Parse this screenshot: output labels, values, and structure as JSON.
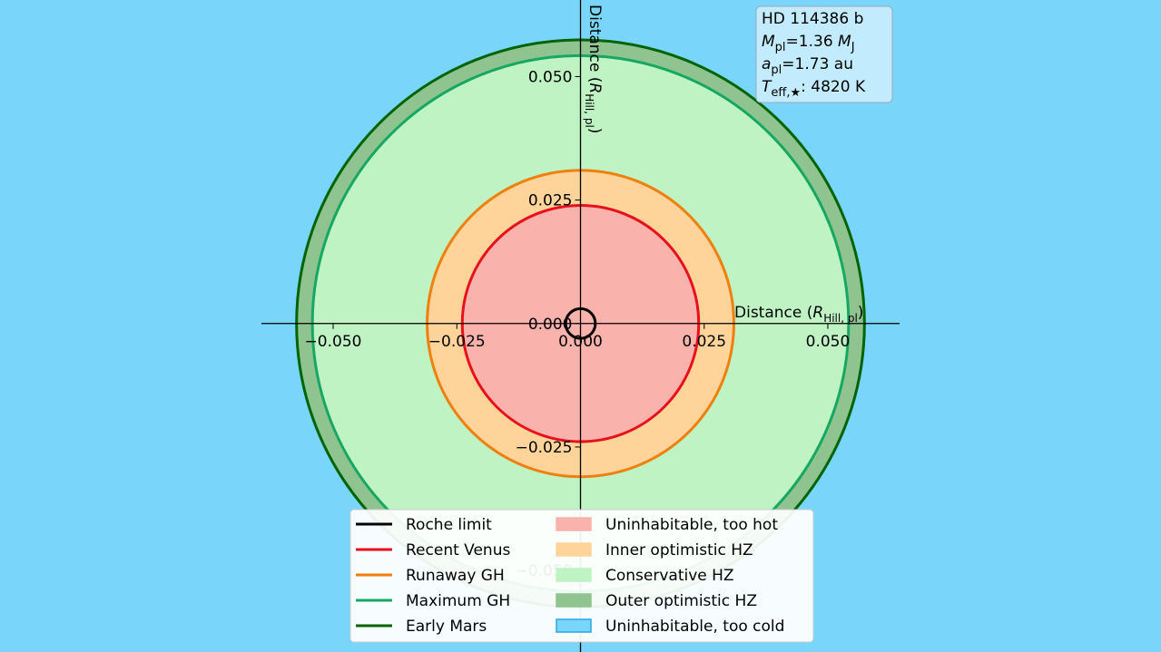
{
  "chart_data": {
    "type": "circles",
    "x_label": {
      "parts": [
        "Distance (",
        "R",
        "Hill, pl",
        ")"
      ]
    },
    "y_label": {
      "parts": [
        "Distance (",
        "R",
        "Hill, pl",
        ")"
      ]
    },
    "xlim": [
      -0.0645,
      0.0645
    ],
    "ylim": [
      -0.0665,
      0.0655
    ],
    "xticks": [
      {
        "value": -0.05,
        "label": "−0.050"
      },
      {
        "value": -0.025,
        "label": "−0.025"
      },
      {
        "value": 0,
        "label": "0.000"
      },
      {
        "value": 0.025,
        "label": "0.025"
      },
      {
        "value": 0.05,
        "label": "0.050"
      }
    ],
    "yticks": [
      {
        "value": -0.05,
        "label": "−0.050"
      },
      {
        "value": -0.025,
        "label": "−0.025"
      },
      {
        "value": 0,
        "label": "0.000"
      },
      {
        "value": 0.025,
        "label": "0.025"
      },
      {
        "value": 0.05,
        "label": "0.050"
      }
    ],
    "series": [
      {
        "name": "Roche limit",
        "color": "#000000",
        "values": [
          0.003
        ]
      },
      {
        "name": "Recent Venus",
        "color": "#e8101a",
        "values": [
          0.0239
        ]
      },
      {
        "name": "Runaway GH",
        "color": "#f0800e",
        "values": [
          0.031
        ]
      },
      {
        "name": "Maximum GH",
        "color": "#16a863",
        "values": [
          0.0542
        ]
      },
      {
        "name": "Early Mars",
        "color": "#006400",
        "values": [
          0.0574
        ]
      }
    ],
    "regions": [
      {
        "name": "Uninhabitable, too hot",
        "color": "#fab2ad"
      },
      {
        "name": "Inner optimistic HZ",
        "color": "#fed49a"
      },
      {
        "name": "Conservative HZ",
        "color": "#bff3c3"
      },
      {
        "name": "Outer optimistic HZ",
        "color": "#8fc38f"
      },
      {
        "name": "Uninhabitable, too cold",
        "color": "#7ad5fa"
      }
    ],
    "annotation": {
      "lines": [
        [
          {
            "text": "HD 114386 b",
            "style": "normal"
          }
        ],
        [
          {
            "text": "M",
            "style": "italic"
          },
          {
            "text": "pl",
            "style": "sub"
          },
          {
            "text": "=1.36 ",
            "style": "normal"
          },
          {
            "text": "M",
            "style": "italic"
          },
          {
            "text": "J",
            "style": "sub"
          }
        ],
        [
          {
            "text": "a",
            "style": "italic"
          },
          {
            "text": "pl",
            "style": "sub"
          },
          {
            "text": "=1.73 au",
            "style": "normal"
          }
        ],
        [
          {
            "text": "T",
            "style": "italic"
          },
          {
            "text": "eff,★",
            "style": "sub"
          },
          {
            "text": ": 4820 K",
            "style": "normal"
          }
        ]
      ]
    }
  }
}
